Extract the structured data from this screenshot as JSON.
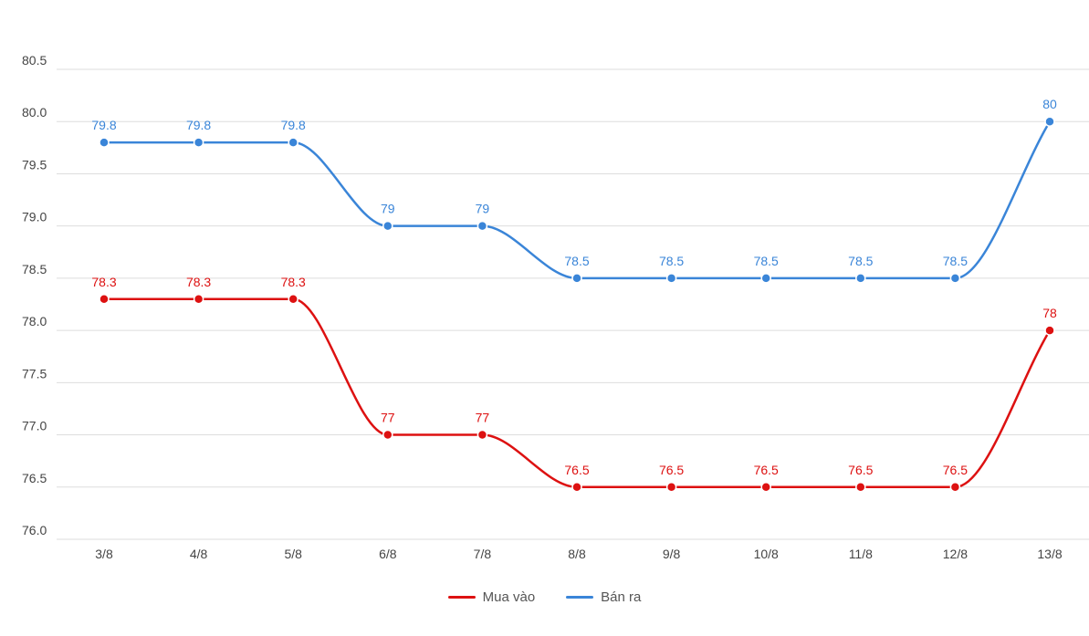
{
  "chart_data": {
    "type": "line",
    "categories": [
      "3/8",
      "4/8",
      "5/8",
      "6/8",
      "7/8",
      "8/8",
      "9/8",
      "10/8",
      "11/8",
      "12/8",
      "13/8"
    ],
    "y_ticks": [
      "76.0",
      "76.5",
      "77.0",
      "77.5",
      "78.0",
      "78.5",
      "79.0",
      "79.5",
      "80.0",
      "80.5"
    ],
    "ylim": [
      76,
      80.5
    ],
    "grid": true,
    "legend_position": "bottom-center",
    "series": [
      {
        "name": "Mua vào",
        "color": "#dd1111",
        "values": [
          78.3,
          78.3,
          78.3,
          77,
          77,
          76.5,
          76.5,
          76.5,
          76.5,
          76.5,
          78
        ],
        "labels": [
          "78.3",
          "78.3",
          "78.3",
          "77",
          "77",
          "76.5",
          "76.5",
          "76.5",
          "76.5",
          "76.5",
          "78"
        ]
      },
      {
        "name": "Bán ra",
        "color": "#3a85d8",
        "values": [
          79.8,
          79.8,
          79.8,
          79,
          79,
          78.5,
          78.5,
          78.5,
          78.5,
          78.5,
          80
        ],
        "labels": [
          "79.8",
          "79.8",
          "79.8",
          "79",
          "79",
          "78.5",
          "78.5",
          "78.5",
          "78.5",
          "78.5",
          "80"
        ]
      }
    ]
  }
}
